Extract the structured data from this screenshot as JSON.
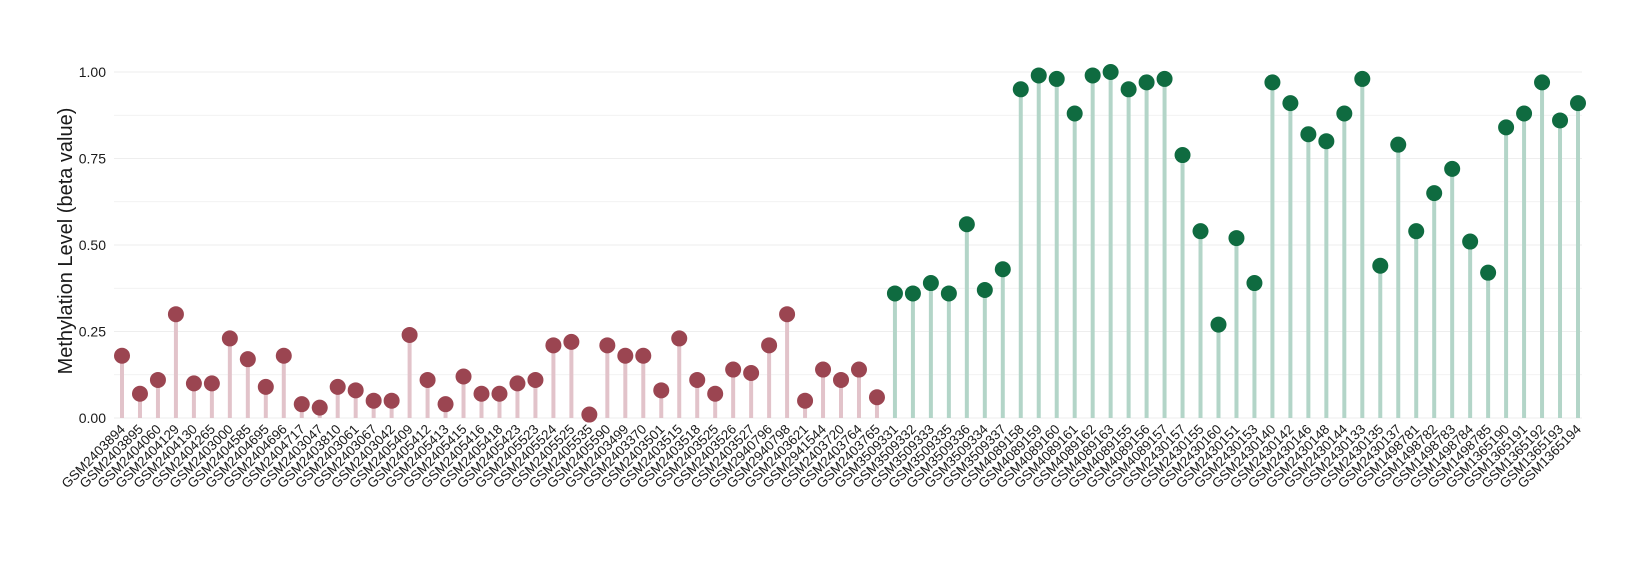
{
  "chart_data": {
    "type": "lollipop",
    "title": "",
    "xlabel": "",
    "ylabel": "Methylation Level (beta value)",
    "ylim": [
      0,
      1.0
    ],
    "yticks": [
      0.0,
      0.25,
      0.5,
      0.75,
      1.0
    ],
    "ytick_labels": [
      "0.00",
      "0.25",
      "0.50",
      "0.75",
      "1.00"
    ],
    "grid": "horizontal",
    "legend": "none",
    "colors": {
      "group_a_stem": "#e2c3ca",
      "group_a_point": "#9b4551",
      "group_b_stem": "#b3d5c8",
      "group_b_point": "#0f6b40",
      "grid": "#eeeeee"
    },
    "categories": [
      "GSM2403894",
      "GSM2403895",
      "GSM2404060",
      "GSM2404129",
      "GSM2404130",
      "GSM2404265",
      "GSM2403000",
      "GSM2404585",
      "GSM2404695",
      "GSM2404696",
      "GSM2404717",
      "GSM2403047",
      "GSM2403810",
      "GSM2403061",
      "GSM2403067",
      "GSM2403042",
      "GSM2405409",
      "GSM2405412",
      "GSM2405413",
      "GSM2405415",
      "GSM2405416",
      "GSM2405418",
      "GSM2405423",
      "GSM2405523",
      "GSM2405524",
      "GSM2405525",
      "GSM2405535",
      "GSM2405590",
      "GSM2403499",
      "GSM2403370",
      "GSM2403501",
      "GSM2403515",
      "GSM2403518",
      "GSM2403525",
      "GSM2403526",
      "GSM2403527",
      "GSM2940796",
      "GSM2940798",
      "GSM2403621",
      "GSM2941544",
      "GSM2403720",
      "GSM2403764",
      "GSM2403765",
      "GSM3509331",
      "GSM3509332",
      "GSM3509333",
      "GSM3509335",
      "GSM3509336",
      "GSM3509334",
      "GSM3509337",
      "GSM4089158",
      "GSM4089159",
      "GSM4089160",
      "GSM4089161",
      "GSM4089162",
      "GSM4089163",
      "GSM4089155",
      "GSM4089156",
      "GSM4089157",
      "GSM2430157",
      "GSM2430155",
      "GSM2430160",
      "GSM2430151",
      "GSM2430153",
      "GSM2430140",
      "GSM2430142",
      "GSM2430146",
      "GSM2430148",
      "GSM2430144",
      "GSM2430133",
      "GSM2430135",
      "GSM2430137",
      "GSM1498781",
      "GSM1498782",
      "GSM1498783",
      "GSM1498784",
      "GSM1498785",
      "GSM1365190",
      "GSM1365191",
      "GSM1365192",
      "GSM1365193",
      "GSM1365194"
    ],
    "values": [
      0.18,
      0.07,
      0.11,
      0.3,
      0.1,
      0.1,
      0.23,
      0.17,
      0.09,
      0.18,
      0.04,
      0.03,
      0.09,
      0.08,
      0.05,
      0.05,
      0.24,
      0.11,
      0.04,
      0.12,
      0.07,
      0.07,
      0.1,
      0.11,
      0.21,
      0.22,
      0.01,
      0.21,
      0.18,
      0.18,
      0.08,
      0.23,
      0.11,
      0.07,
      0.14,
      0.13,
      0.21,
      0.3,
      0.05,
      0.14,
      0.11,
      0.14,
      0.06,
      0.36,
      0.36,
      0.39,
      0.36,
      0.56,
      0.37,
      0.43,
      0.95,
      0.99,
      0.98,
      0.88,
      0.99,
      1.0,
      0.95,
      0.97,
      0.98,
      0.76,
      0.54,
      0.27,
      0.52,
      0.39,
      0.97,
      0.91,
      0.82,
      0.8,
      0.88,
      0.98,
      0.44,
      0.79,
      0.54,
      0.65,
      0.72,
      0.51,
      0.42,
      0.84,
      0.88,
      0.97,
      0.86,
      0.91
    ],
    "groups": [
      "a",
      "a",
      "a",
      "a",
      "a",
      "a",
      "a",
      "a",
      "a",
      "a",
      "a",
      "a",
      "a",
      "a",
      "a",
      "a",
      "a",
      "a",
      "a",
      "a",
      "a",
      "a",
      "a",
      "a",
      "a",
      "a",
      "a",
      "a",
      "a",
      "a",
      "a",
      "a",
      "a",
      "a",
      "a",
      "a",
      "a",
      "a",
      "a",
      "a",
      "a",
      "a",
      "a",
      "b",
      "b",
      "b",
      "b",
      "b",
      "b",
      "b",
      "b",
      "b",
      "b",
      "b",
      "b",
      "b",
      "b",
      "b",
      "b",
      "b",
      "b",
      "b",
      "b",
      "b",
      "b",
      "b",
      "b",
      "b",
      "b",
      "b",
      "b",
      "b",
      "b",
      "b",
      "b",
      "b",
      "b",
      "b",
      "b",
      "b",
      "b",
      "b"
    ]
  }
}
